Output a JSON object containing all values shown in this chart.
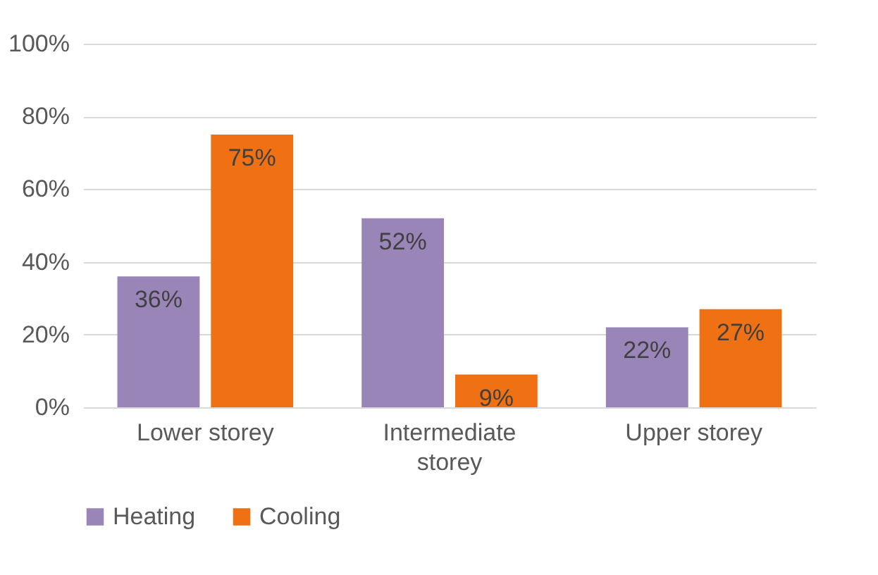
{
  "chart_data": {
    "type": "bar",
    "categories": [
      "Lower storey",
      "Intermediate storey",
      "Upper storey"
    ],
    "series": [
      {
        "name": "Heating",
        "color": "#9a85b8",
        "values": [
          36,
          52,
          22
        ],
        "value_labels": [
          "36%",
          "52%",
          "22%"
        ]
      },
      {
        "name": "Cooling",
        "color": "#f07113",
        "values": [
          75,
          9,
          27
        ],
        "value_labels": [
          "75%",
          "9%",
          "27%"
        ]
      }
    ],
    "ylim": [
      0,
      100
    ],
    "yticks": [
      {
        "value": 0,
        "label": "0%"
      },
      {
        "value": 20,
        "label": "20%"
      },
      {
        "value": 40,
        "label": "40%"
      },
      {
        "value": 60,
        "label": "60%"
      },
      {
        "value": 80,
        "label": "80%"
      },
      {
        "value": 100,
        "label": "100%"
      }
    ],
    "grid": "y",
    "legend": "bottom"
  }
}
